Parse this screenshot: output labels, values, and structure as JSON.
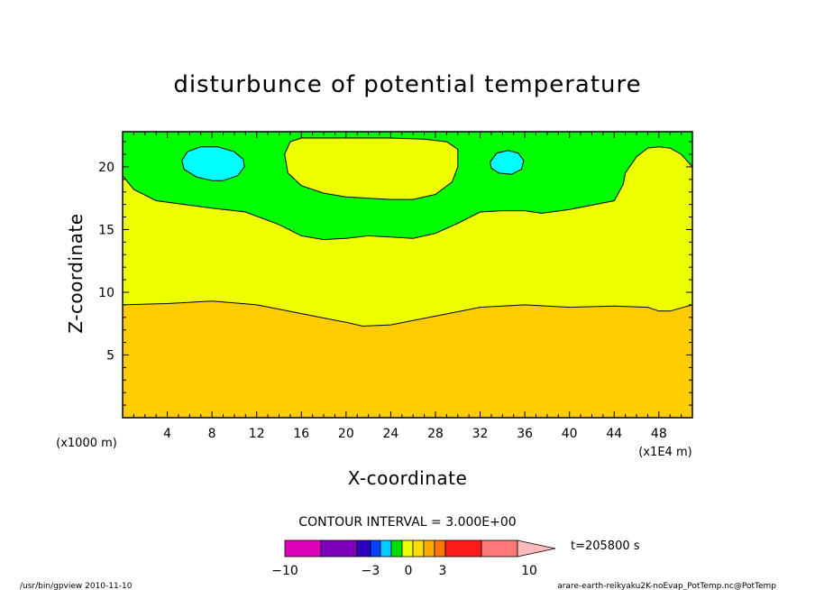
{
  "chart_data": {
    "type": "contour",
    "title": "disturbunce of potential temperature",
    "xlabel": "X-coordinate",
    "ylabel": "Z-coordinate",
    "x_scale_note": "(x1E4 m)",
    "y_scale_note": "(x1000 m)",
    "xlim": [
      0,
      51
    ],
    "ylim": [
      0,
      22.8
    ],
    "x_ticks": [
      4,
      8,
      12,
      16,
      20,
      24,
      28,
      32,
      36,
      40,
      44,
      48
    ],
    "y_ticks": [
      5,
      10,
      15,
      20
    ],
    "contour_interval_text": "CONTOUR INTERVAL = 3.000E+00",
    "time_text": "t=205800 s",
    "colorbar": {
      "labels": [
        {
          "text": "−10",
          "value": -10
        },
        {
          "text": "−3",
          "value": -3
        },
        {
          "text": "0",
          "value": 0
        },
        {
          "text": "3",
          "value": 3
        },
        {
          "text": "10",
          "value": 10
        }
      ],
      "colors": [
        "#dd00bb",
        "#7f00bb",
        "#2c00c0",
        "#0044ff",
        "#00ccff",
        "#00dd00",
        "#eeff00",
        "#ffdd00",
        "#ffaa00",
        "#ff7700",
        "#ff1a1a",
        "#ff7777",
        "#ffbbbb"
      ]
    },
    "regions": [
      {
        "name": "band-low",
        "color": "#ffcc00",
        "bottom": 0,
        "top_profile": [
          [
            0,
            9.0
          ],
          [
            4,
            9.1
          ],
          [
            8,
            9.3
          ],
          [
            12,
            9.0
          ],
          [
            16,
            8.3
          ],
          [
            20,
            7.6
          ],
          [
            21.5,
            7.3
          ],
          [
            24,
            7.4
          ],
          [
            28,
            8.1
          ],
          [
            32,
            8.8
          ],
          [
            36,
            9.0
          ],
          [
            40,
            8.8
          ],
          [
            44,
            8.9
          ],
          [
            47,
            8.8
          ],
          [
            48,
            8.5
          ],
          [
            49,
            8.5
          ],
          [
            51,
            9.0
          ]
        ]
      },
      {
        "name": "band-mid",
        "color": "#eeff00",
        "top_profile": [
          [
            0,
            19.3
          ],
          [
            1,
            18.2
          ],
          [
            3,
            17.3
          ],
          [
            8,
            16.7
          ],
          [
            11,
            16.4
          ],
          [
            14,
            15.4
          ],
          [
            16,
            14.5
          ],
          [
            18,
            14.2
          ],
          [
            20,
            14.3
          ],
          [
            22,
            14.5
          ],
          [
            24,
            14.4
          ],
          [
            26,
            14.3
          ],
          [
            28,
            14.7
          ],
          [
            30,
            15.5
          ],
          [
            32,
            16.4
          ],
          [
            34,
            16.5
          ],
          [
            36,
            16.5
          ],
          [
            37.5,
            16.3
          ],
          [
            40,
            16.6
          ],
          [
            44,
            17.3
          ],
          [
            44.8,
            18.6
          ],
          [
            45,
            19.5
          ],
          [
            46,
            20.8
          ],
          [
            47,
            21.5
          ],
          [
            48,
            21.6
          ],
          [
            49,
            21.5
          ],
          [
            50,
            21.0
          ],
          [
            51,
            20.0
          ]
        ]
      },
      {
        "name": "band-top",
        "color": "#00ff00"
      },
      {
        "name": "yellow-lobe",
        "color": "#eeff00",
        "outline": [
          [
            14.5,
            21.0
          ],
          [
            15,
            22.0
          ],
          [
            16,
            22.3
          ],
          [
            20,
            22.3
          ],
          [
            24,
            22.3
          ],
          [
            27,
            22.2
          ],
          [
            29,
            22.0
          ],
          [
            30,
            21.4
          ],
          [
            30,
            20.0
          ],
          [
            29.5,
            18.8
          ],
          [
            28,
            17.8
          ],
          [
            26,
            17.4
          ],
          [
            24,
            17.4
          ],
          [
            22,
            17.5
          ],
          [
            20,
            17.6
          ],
          [
            18,
            17.9
          ],
          [
            16,
            18.5
          ],
          [
            14.8,
            19.5
          ]
        ]
      },
      {
        "name": "cyan-left",
        "color": "#00ffff",
        "outline": [
          [
            5.3,
            20.5
          ],
          [
            5.8,
            21.2
          ],
          [
            7,
            21.6
          ],
          [
            8.5,
            21.6
          ],
          [
            10,
            21.2
          ],
          [
            10.8,
            20.6
          ],
          [
            10.9,
            20.0
          ],
          [
            10.3,
            19.3
          ],
          [
            9,
            18.9
          ],
          [
            8,
            18.9
          ],
          [
            6.6,
            19.2
          ],
          [
            5.5,
            19.8
          ]
        ]
      },
      {
        "name": "cyan-right",
        "color": "#00ffff",
        "outline": [
          [
            32.9,
            20.4
          ],
          [
            33.5,
            21.1
          ],
          [
            34.5,
            21.3
          ],
          [
            35.4,
            21.1
          ],
          [
            35.9,
            20.5
          ],
          [
            35.7,
            19.8
          ],
          [
            34.8,
            19.4
          ],
          [
            33.7,
            19.5
          ],
          [
            33.0,
            19.9
          ]
        ]
      }
    ]
  },
  "footer": {
    "left": "/usr/bin/gpview  2010-11-10",
    "right": "arare-earth-reikyaku2K-noEvap_PotTemp.nc@PotTemp"
  }
}
